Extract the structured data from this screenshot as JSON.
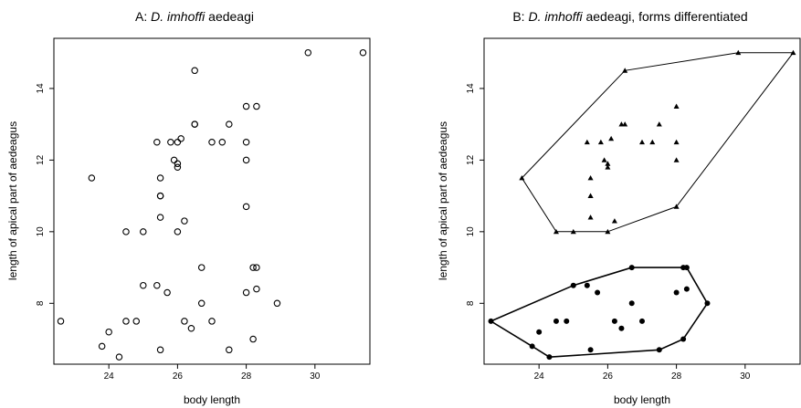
{
  "chart_data": [
    {
      "type": "scatter",
      "title_prefix": "A: ",
      "title_italic": "D. imhoffi",
      "title_suffix": " aedeagi",
      "xlabel": "body length",
      "ylabel": "length of apical part of aedeagus",
      "xlim": [
        22.4,
        31.6
      ],
      "ylim": [
        6.3,
        15.4
      ],
      "xticks": [
        24,
        26,
        28,
        30
      ],
      "yticks": [
        8,
        10,
        12,
        14
      ],
      "grid": false,
      "series": [
        {
          "marker": "open-circle",
          "x": [
            22.6,
            23.5,
            23.8,
            24.0,
            24.3,
            24.5,
            24.5,
            24.8,
            25.0,
            25.0,
            25.4,
            25.4,
            25.5,
            25.5,
            25.5,
            25.5,
            25.5,
            25.7,
            25.8,
            25.9,
            26.0,
            26.0,
            26.0,
            26.0,
            26.1,
            26.2,
            26.2,
            26.4,
            26.5,
            26.5,
            26.5,
            26.7,
            26.7,
            27.0,
            27.0,
            27.3,
            27.5,
            27.5,
            28.0,
            28.0,
            28.0,
            28.0,
            28.0,
            28.2,
            28.2,
            28.3,
            28.3,
            28.3,
            28.9,
            29.8,
            31.4
          ],
          "y": [
            7.5,
            11.5,
            6.8,
            7.2,
            6.5,
            10.0,
            7.5,
            7.5,
            8.5,
            10.0,
            12.5,
            8.5,
            11.0,
            11.5,
            10.4,
            11.0,
            6.7,
            8.3,
            12.5,
            12.0,
            11.8,
            10.0,
            12.5,
            11.9,
            12.6,
            7.5,
            10.3,
            7.3,
            13.0,
            13.0,
            14.5,
            9.0,
            8.0,
            12.5,
            7.5,
            12.5,
            13.0,
            6.7,
            13.5,
            12.5,
            12.0,
            10.7,
            8.3,
            9.0,
            7.0,
            9.0,
            8.4,
            13.5,
            8.0,
            15.0,
            15.0
          ]
        }
      ]
    },
    {
      "type": "scatter",
      "title_prefix": "B: ",
      "title_italic": "D. imhoffi",
      "title_suffix": " aedeagi, forms differentiated",
      "xlabel": "body length",
      "ylabel": "length of apical part of aedeagus",
      "xlim": [
        22.4,
        31.6
      ],
      "ylim": [
        6.3,
        15.4
      ],
      "xticks": [
        24,
        26,
        28,
        30
      ],
      "yticks": [
        8,
        10,
        12,
        14
      ],
      "grid": false,
      "series": [
        {
          "marker": "filled-triangle",
          "hull": [
            [
              23.5,
              11.5
            ],
            [
              26.5,
              14.5
            ],
            [
              29.8,
              15.0
            ],
            [
              31.4,
              15.0
            ],
            [
              28.0,
              10.7
            ],
            [
              26.0,
              10.0
            ],
            [
              25.0,
              10.0
            ],
            [
              24.5,
              10.0
            ]
          ],
          "x": [
            23.5,
            24.5,
            25.0,
            25.4,
            25.5,
            25.5,
            25.5,
            25.5,
            25.8,
            25.9,
            26.0,
            26.0,
            26.0,
            26.1,
            26.2,
            26.4,
            26.5,
            26.5,
            27.0,
            27.3,
            27.5,
            28.0,
            28.0,
            28.0,
            28.0,
            29.8,
            31.4
          ],
          "y": [
            11.5,
            10.0,
            10.0,
            12.5,
            11.5,
            11.0,
            10.4,
            11.0,
            12.5,
            12.0,
            11.8,
            10.0,
            11.9,
            12.6,
            10.3,
            13.0,
            13.0,
            14.5,
            12.5,
            12.5,
            13.0,
            13.5,
            12.5,
            12.0,
            10.7,
            15.0,
            15.0
          ]
        },
        {
          "marker": "filled-circle",
          "hull": [
            [
              22.6,
              7.5
            ],
            [
              25.0,
              8.5
            ],
            [
              26.7,
              9.0
            ],
            [
              28.3,
              9.0
            ],
            [
              28.9,
              8.0
            ],
            [
              28.2,
              7.0
            ],
            [
              27.5,
              6.7
            ],
            [
              24.3,
              6.5
            ],
            [
              23.8,
              6.8
            ]
          ],
          "x": [
            22.6,
            23.8,
            24.0,
            24.3,
            24.5,
            24.8,
            25.0,
            25.4,
            25.5,
            25.7,
            26.2,
            26.4,
            26.7,
            26.7,
            27.0,
            27.5,
            28.0,
            28.2,
            28.2,
            28.3,
            28.3,
            28.9
          ],
          "y": [
            7.5,
            6.8,
            7.2,
            6.5,
            7.5,
            7.5,
            8.5,
            8.5,
            6.7,
            8.3,
            7.5,
            7.3,
            9.0,
            8.0,
            7.5,
            6.7,
            8.3,
            9.0,
            7.0,
            9.0,
            8.4,
            8.0
          ]
        }
      ]
    }
  ]
}
